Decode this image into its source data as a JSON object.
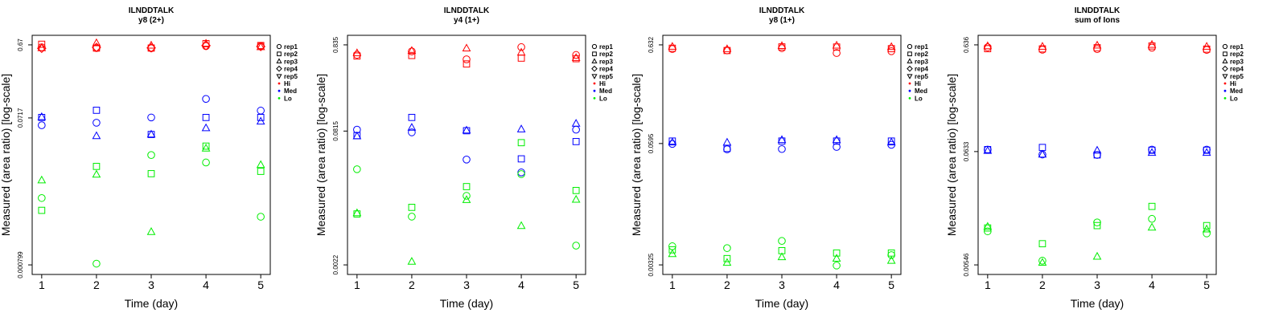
{
  "colors": {
    "Hi": "#ff0000",
    "Med": "#0000ff",
    "Lo": "#00ee00"
  },
  "legend": {
    "reps": [
      "rep1",
      "rep2",
      "rep3",
      "rep4",
      "rep5"
    ],
    "rep_symbols": [
      "circle",
      "square",
      "triangle-up",
      "diamond",
      "triangle-down"
    ],
    "groups": [
      "Hi",
      "Med",
      "Lo"
    ]
  },
  "chart_data": [
    {
      "type": "scatter",
      "title": "ILNDDTALK",
      "subtitle": "y8 (2+)",
      "xlabel": "Time (day)",
      "ylabel": "Measured (area ratio) [log-scale]",
      "log_y": true,
      "x_ticks": [
        "1",
        "2",
        "3",
        "4",
        "5"
      ],
      "y_tick_labels": [
        "0.000799",
        "0.0717",
        "0.67"
      ],
      "y_tick_values": [
        0.000799,
        0.0717,
        0.67
      ],
      "ylim": [
        0.000799,
        0.67
      ],
      "legend_position": "right",
      "series": [
        {
          "group": "Hi",
          "rep": "rep1",
          "x": [
            1,
            2,
            3,
            4,
            5
          ],
          "y": [
            0.622,
            0.608,
            0.604,
            0.645,
            0.647
          ]
        },
        {
          "group": "Hi",
          "rep": "rep2",
          "x": [
            1,
            2,
            3,
            4,
            5
          ],
          "y": [
            0.683,
            0.608,
            0.608,
            0.697,
            0.657
          ]
        },
        {
          "group": "Hi",
          "rep": "rep3",
          "x": [
            1,
            2,
            3,
            4,
            5
          ],
          "y": [
            0.607,
            0.707,
            0.657,
            0.697,
            0.627
          ]
        },
        {
          "group": "Hi",
          "rep": "rep4",
          "x": [
            1,
            2,
            3,
            4,
            5
          ],
          "y": [
            0.602,
            0.622,
            0.612,
            0.657,
            0.637
          ]
        },
        {
          "group": "Med",
          "rep": "rep1",
          "x": [
            1,
            2,
            3,
            4,
            5
          ],
          "y": [
            0.0573,
            0.0619,
            0.0727,
            0.1283,
            0.0896
          ]
        },
        {
          "group": "Med",
          "rep": "rep2",
          "x": [
            1,
            2,
            3,
            4,
            5
          ],
          "y": [
            0.0727,
            0.0906,
            0.0432,
            0.0727,
            0.0727
          ]
        },
        {
          "group": "Med",
          "rep": "rep3",
          "x": [
            1,
            2,
            3,
            4,
            5
          ],
          "y": [
            0.0737,
            0.0412,
            0.0432,
            0.0524,
            0.0642
          ]
        },
        {
          "group": "Lo",
          "rep": "rep1",
          "x": [
            1,
            2,
            3,
            4,
            5
          ],
          "y": [
            0.00618,
            0.00083,
            0.02304,
            0.01834,
            0.00349
          ]
        },
        {
          "group": "Lo",
          "rep": "rep2",
          "x": [
            1,
            2,
            3,
            4,
            5
          ],
          "y": [
            0.00424,
            0.01627,
            0.01302,
            0.03026,
            0.01398
          ]
        },
        {
          "group": "Lo",
          "rep": "rep3",
          "x": [
            1,
            2,
            3,
            4,
            5
          ],
          "y": [
            0.01063,
            0.01267,
            0.00219,
            0.02818,
            0.01701
          ]
        }
      ]
    },
    {
      "type": "scatter",
      "title": "ILNDDTALK",
      "subtitle": "y4 (1+)",
      "xlabel": "Time (day)",
      "ylabel": "Measured (area ratio) [log-scale]",
      "log_y": true,
      "x_ticks": [
        "1",
        "2",
        "3",
        "4",
        "5"
      ],
      "y_tick_labels": [
        "0.0022",
        "0.0815",
        "0.835"
      ],
      "y_tick_values": [
        0.0022,
        0.0815,
        0.835
      ],
      "ylim": [
        0.0022,
        0.835
      ],
      "legend_position": "right",
      "series": [
        {
          "group": "Hi",
          "rep": "rep1",
          "x": [
            1,
            2,
            3,
            4,
            5
          ],
          "y": [
            0.639,
            0.7,
            0.565,
            0.786,
            0.636
          ]
        },
        {
          "group": "Hi",
          "rep": "rep2",
          "x": [
            1,
            2,
            3,
            4,
            5
          ],
          "y": [
            0.618,
            0.627,
            0.499,
            0.584,
            0.575
          ]
        },
        {
          "group": "Hi",
          "rep": "rep3",
          "x": [
            1,
            2,
            3,
            4,
            5
          ],
          "y": [
            0.668,
            0.711,
            0.759,
            0.679,
            0.587
          ]
        },
        {
          "group": "Med",
          "rep": "rep1",
          "x": [
            1,
            2,
            3,
            4,
            5
          ],
          "y": [
            0.0847,
            0.0788,
            0.0378,
            0.0267,
            0.0846
          ]
        },
        {
          "group": "Med",
          "rep": "rep2",
          "x": [
            1,
            2,
            3,
            4,
            5
          ],
          "y": [
            0.0722,
            0.1178,
            0.0823,
            0.0385,
            0.0614
          ]
        },
        {
          "group": "Med",
          "rep": "rep3",
          "x": [
            1,
            2,
            3,
            4,
            5
          ],
          "y": [
            0.0709,
            0.0894,
            0.0829,
            0.0855,
            0.0996
          ]
        },
        {
          "group": "Lo",
          "rep": "rep1",
          "x": [
            1,
            2,
            3,
            4,
            5
          ],
          "y": [
            0.0291,
            0.0081,
            0.0142,
            0.0255,
            0.0037
          ]
        },
        {
          "group": "Lo",
          "rep": "rep2",
          "x": [
            1,
            2,
            3,
            4,
            5
          ],
          "y": [
            0.0087,
            0.0104,
            0.0182,
            0.0596,
            0.0164
          ]
        },
        {
          "group": "Lo",
          "rep": "rep3",
          "x": [
            1,
            2,
            3,
            4,
            5
          ],
          "y": [
            0.0089,
            0.0024,
            0.0127,
            0.0063,
            0.0128
          ]
        }
      ]
    },
    {
      "type": "scatter",
      "title": "ILNDDTALK",
      "subtitle": "y8 (1+)",
      "xlabel": "Time (day)",
      "ylabel": "Measured (area ratio) [log-scale]",
      "log_y": true,
      "x_ticks": [
        "1",
        "2",
        "3",
        "4",
        "5"
      ],
      "y_tick_labels": [
        "0.00325",
        "0.0595",
        "0.632"
      ],
      "y_tick_values": [
        0.00325,
        0.0595,
        0.632
      ],
      "ylim": [
        0.00325,
        0.632
      ],
      "legend_position": "right",
      "series": [
        {
          "group": "Hi",
          "rep": "rep1",
          "x": [
            1,
            2,
            3,
            4,
            5
          ],
          "y": [
            0.572,
            0.554,
            0.584,
            0.52,
            0.543
          ]
        },
        {
          "group": "Hi",
          "rep": "rep2",
          "x": [
            1,
            2,
            3,
            4,
            5
          ],
          "y": [
            0.583,
            0.552,
            0.602,
            0.6,
            0.577
          ]
        },
        {
          "group": "Hi",
          "rep": "rep3",
          "x": [
            1,
            2,
            3,
            4,
            5
          ],
          "y": [
            0.605,
            0.571,
            0.616,
            0.622,
            0.601
          ]
        },
        {
          "group": "Med",
          "rep": "rep1",
          "x": [
            1,
            2,
            3,
            4,
            5
          ],
          "y": [
            0.0589,
            0.0518,
            0.0521,
            0.0548,
            0.0577
          ]
        },
        {
          "group": "Med",
          "rep": "rep2",
          "x": [
            1,
            2,
            3,
            4,
            5
          ],
          "y": [
            0.0631,
            0.0529,
            0.0631,
            0.0631,
            0.0631
          ]
        },
        {
          "group": "Med",
          "rep": "rep3",
          "x": [
            1,
            2,
            3,
            4,
            5
          ],
          "y": [
            0.0612,
            0.0609,
            0.0648,
            0.0648,
            0.0612
          ]
        },
        {
          "group": "Lo",
          "rep": "rep1",
          "x": [
            1,
            2,
            3,
            4,
            5
          ],
          "y": [
            0.00508,
            0.00486,
            0.00577,
            0.0032,
            0.00411
          ]
        },
        {
          "group": "Lo",
          "rep": "rep2",
          "x": [
            1,
            2,
            3,
            4,
            5
          ],
          "y": [
            0.00466,
            0.00378,
            0.00457,
            0.00432,
            0.00432
          ]
        },
        {
          "group": "Lo",
          "rep": "rep3",
          "x": [
            1,
            2,
            3,
            4,
            5
          ],
          "y": [
            0.00422,
            0.00342,
            0.00391,
            0.00378,
            0.00359
          ]
        }
      ]
    },
    {
      "type": "scatter",
      "title": "ILNDDTALK",
      "subtitle": "sum of Ions",
      "xlabel": "Time (day)",
      "ylabel": "Measured (area ratio) [log-scale]",
      "log_y": true,
      "x_ticks": [
        "1",
        "2",
        "3",
        "4",
        "5"
      ],
      "y_tick_labels": [
        "0.00546",
        "0.0633",
        "0.636"
      ],
      "y_tick_values": [
        0.00546,
        0.0633,
        0.636
      ],
      "ylim": [
        0.00546,
        0.636
      ],
      "legend_position": "right",
      "series": [
        {
          "group": "Hi",
          "rep": "rep1",
          "x": [
            1,
            2,
            3,
            4,
            5
          ],
          "y": [
            0.604,
            0.573,
            0.58,
            0.598,
            0.57
          ]
        },
        {
          "group": "Hi",
          "rep": "rep2",
          "x": [
            1,
            2,
            3,
            4,
            5
          ],
          "y": [
            0.586,
            0.583,
            0.598,
            0.621,
            0.58
          ]
        },
        {
          "group": "Hi",
          "rep": "rep3",
          "x": [
            1,
            2,
            3,
            4,
            5
          ],
          "y": [
            0.619,
            0.612,
            0.628,
            0.638,
            0.612
          ]
        },
        {
          "group": "Med",
          "rep": "rep1",
          "x": [
            1,
            2,
            3,
            4,
            5
          ],
          "y": [
            0.0661,
            0.0594,
            0.0589,
            0.0661,
            0.0661
          ]
        },
        {
          "group": "Med",
          "rep": "rep2",
          "x": [
            1,
            2,
            3,
            4,
            5
          ],
          "y": [
            0.0661,
            0.0692,
            0.0589,
            0.0652,
            0.0652
          ]
        },
        {
          "group": "Med",
          "rep": "rep3",
          "x": [
            1,
            2,
            3,
            4,
            5
          ],
          "y": [
            0.0644,
            0.0594,
            0.0647,
            0.0617,
            0.0617
          ]
        },
        {
          "group": "Lo",
          "rep": "rep1",
          "x": [
            1,
            2,
            3,
            4,
            5
          ],
          "y": [
            0.01128,
            0.00598,
            0.01367,
            0.01477,
            0.01078
          ]
        },
        {
          "group": "Lo",
          "rep": "rep2",
          "x": [
            1,
            2,
            3,
            4,
            5
          ],
          "y": [
            0.01213,
            0.00863,
            0.01277,
            0.01934,
            0.01277
          ]
        },
        {
          "group": "Lo",
          "rep": "rep3",
          "x": [
            1,
            2,
            3,
            4,
            5
          ],
          "y": [
            0.01247,
            0.00573,
            0.00653,
            0.01225,
            0.01179
          ]
        }
      ]
    }
  ]
}
